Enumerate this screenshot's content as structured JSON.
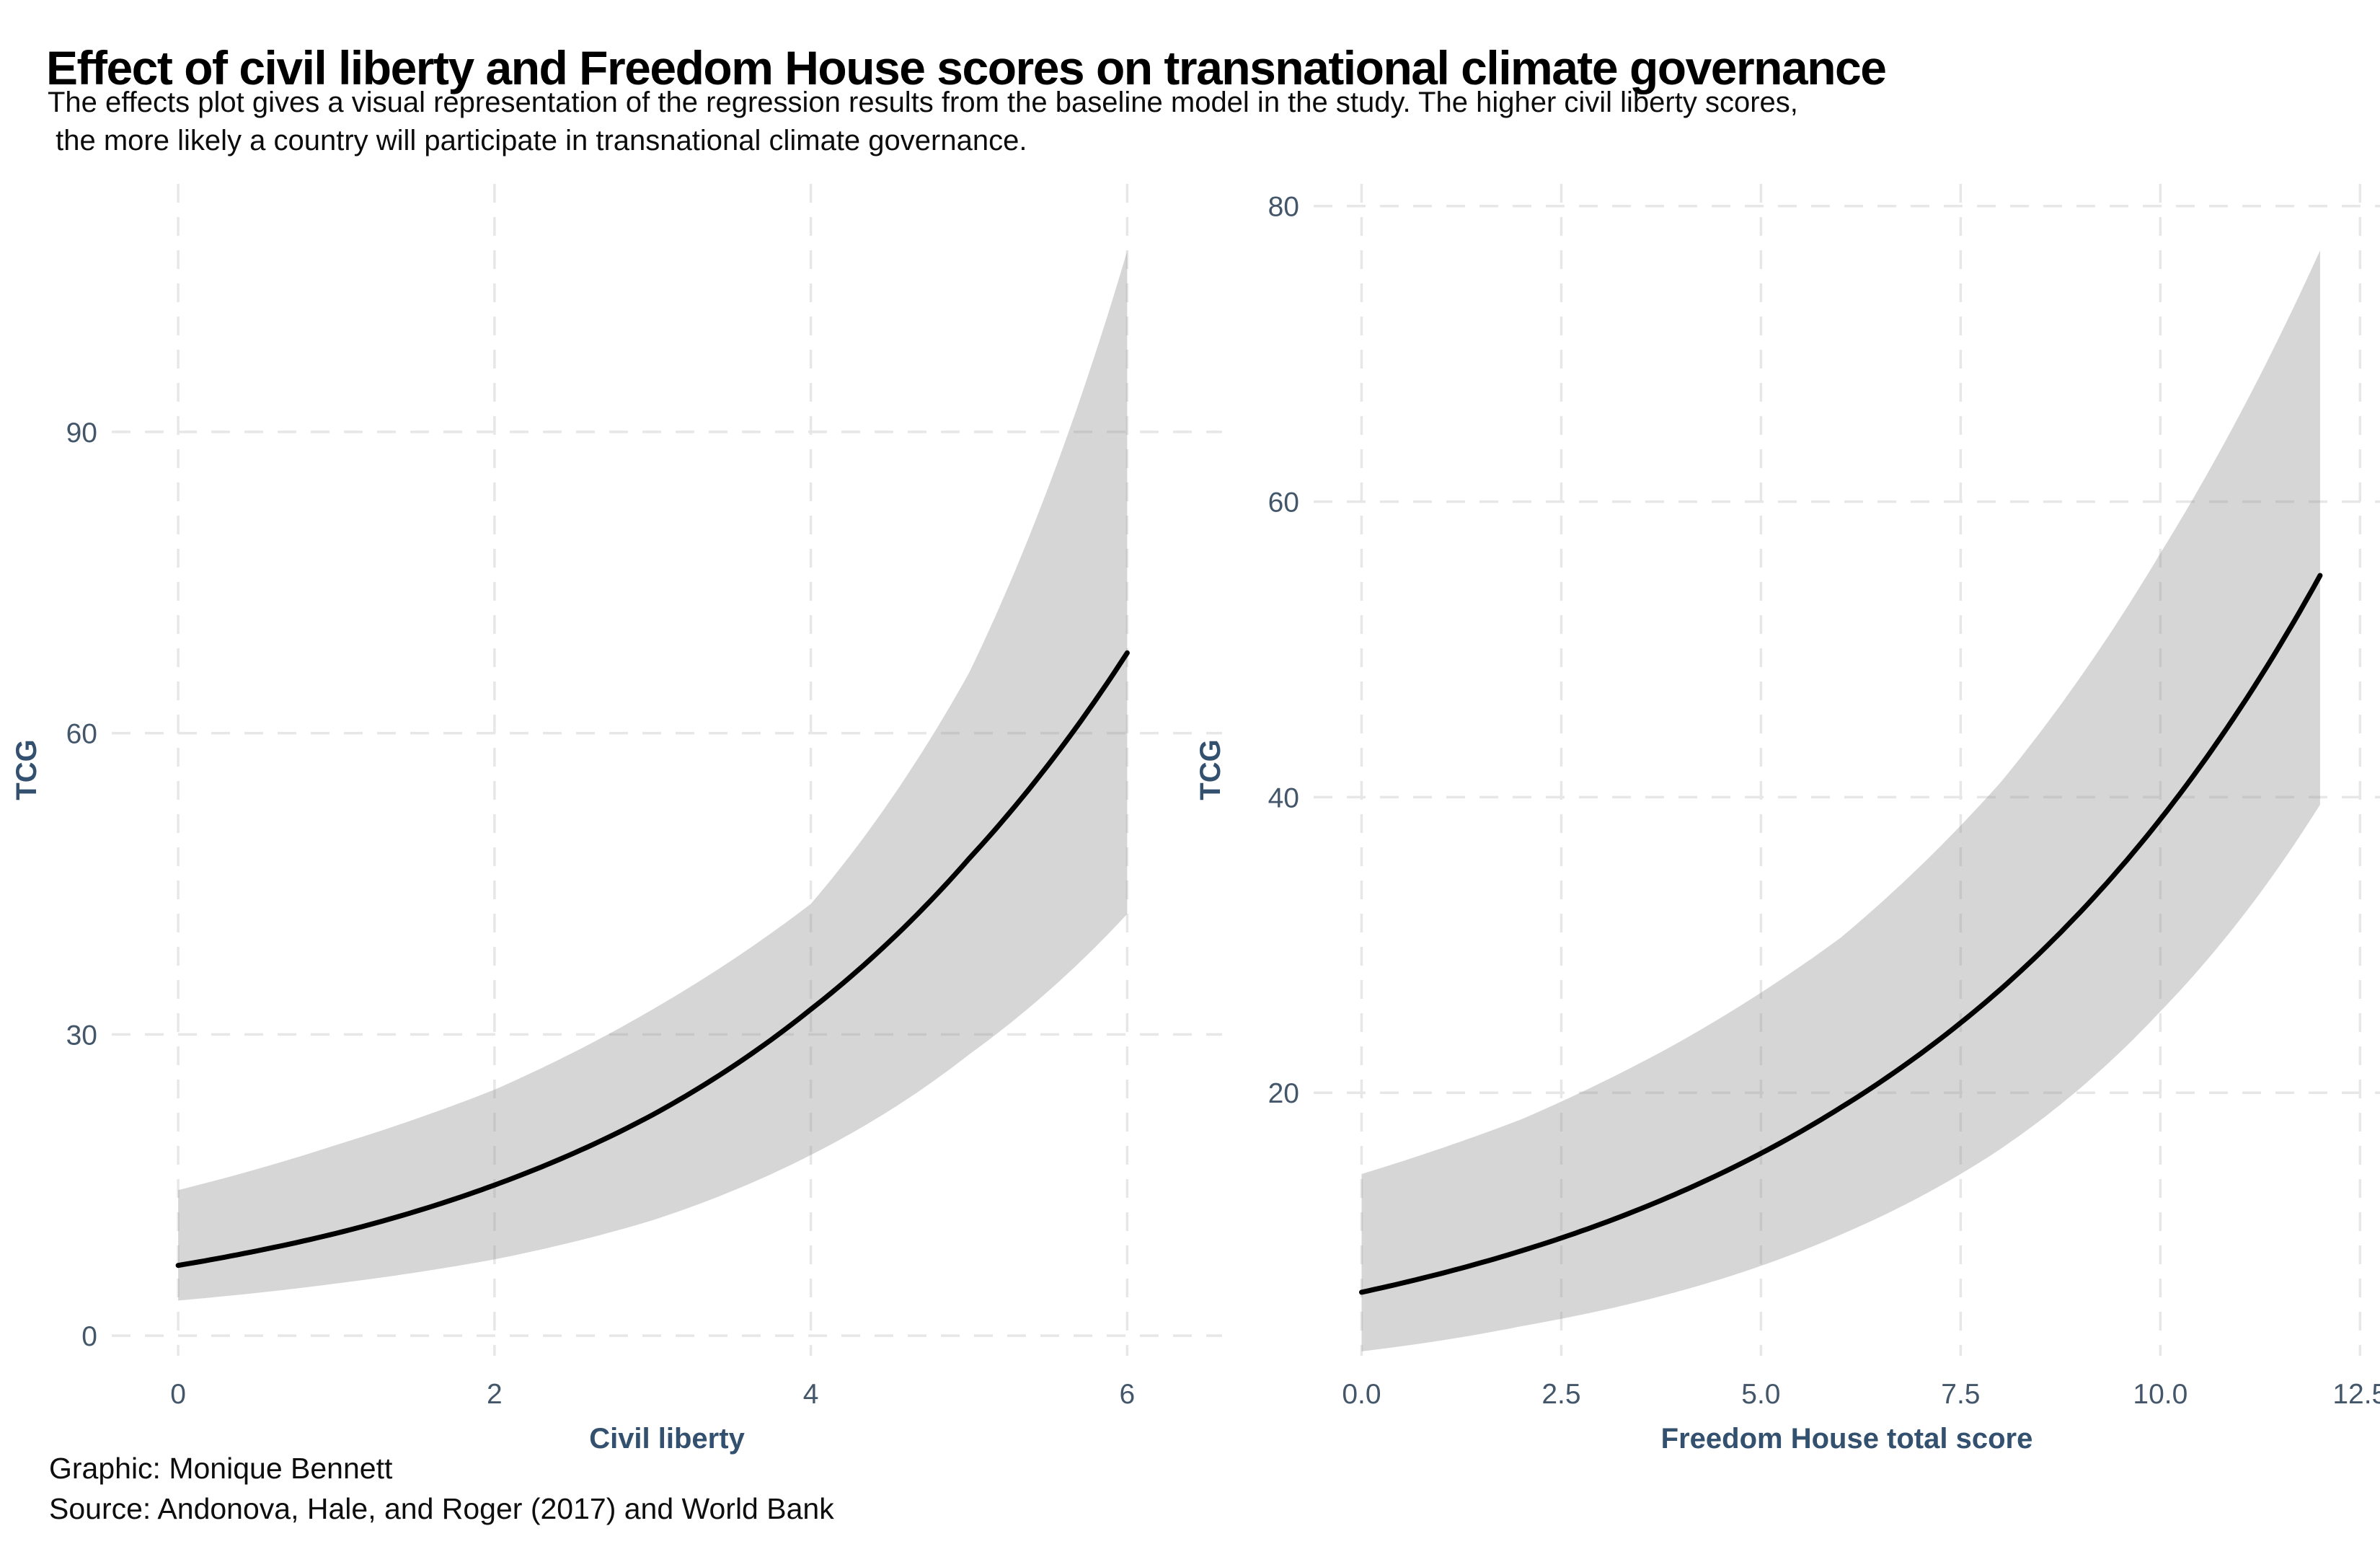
{
  "header": {
    "title": "Effect of civil liberty and Freedom House scores on transnational climate governance",
    "subtitle_line1": "The effects plot gives a visual representation of the regression results from the baseline model in the study. The higher civil liberty scores,",
    "subtitle_line2": " the more likely a country will participate in transnational climate governance."
  },
  "caption": {
    "line1": "Graphic: Monique Bennett",
    "line2": "Source: Andonova, Hale, and Roger (2017) and World Bank"
  },
  "colors": {
    "title_text": "#000000",
    "subtitle_text": "#0c0c0c",
    "caption_text": "#0e0e0e",
    "tick_label": "#43566a",
    "axis_title": "#33506f",
    "gridline": "#e7e7e7",
    "fit_line": "#000000",
    "confidence_band": "rgba(153,153,153,0.4)"
  },
  "chart_data": [
    {
      "id": "civil-liberty-effect",
      "type": "line",
      "title": "",
      "xlabel": "Civil liberty",
      "ylabel": "TCG",
      "grid": "dashed-major",
      "legend": "none",
      "x": [
        0,
        1,
        2,
        3,
        4,
        5,
        6
      ],
      "series": [
        {
          "role": "fit",
          "name": "Fitted TCG effect",
          "values": [
            7,
            10.2,
            15,
            22,
            32.5,
            47.5,
            68
          ]
        },
        {
          "role": "lower",
          "name": "Confidence band lower",
          "values": [
            3.5,
            5.2,
            7.6,
            11.5,
            18,
            28,
            42
          ]
        },
        {
          "role": "upper",
          "name": "Confidence band upper",
          "values": [
            14.5,
            19,
            24.5,
            32.5,
            43,
            66,
            108
          ]
        }
      ],
      "xticks": {
        "values": [
          0,
          2,
          4,
          6
        ],
        "labels": [
          "0",
          "2",
          "4",
          "6"
        ]
      },
      "yticks": {
        "values": [
          0,
          30,
          60,
          90
        ],
        "labels": [
          "0",
          "30",
          "60",
          "90"
        ]
      },
      "xlim": [
        -0.42,
        6.6
      ],
      "ylim": [
        -2,
        114.7
      ]
    },
    {
      "id": "freedom-house-effect",
      "type": "line",
      "title": "",
      "xlabel": "Freedom House total score",
      "ylabel": "TCG",
      "grid": "dashed-major",
      "legend": "none",
      "x": [
        0,
        2,
        4,
        6,
        8,
        10,
        12
      ],
      "series": [
        {
          "role": "fit",
          "name": "Fitted TCG effect",
          "values": [
            6.5,
            9.3,
            13.3,
            19,
            27,
            38.5,
            55
          ]
        },
        {
          "role": "lower",
          "name": "Confidence band lower",
          "values": [
            2.5,
            4.2,
            6.6,
            10.4,
            16.2,
            25.5,
            39.5
          ]
        },
        {
          "role": "upper",
          "name": "Confidence band upper",
          "values": [
            14.5,
            18.2,
            23.5,
            30.5,
            41,
            56.5,
            77
          ]
        }
      ],
      "xticks": {
        "values": [
          0,
          2.5,
          5,
          7.5,
          10,
          12.5
        ],
        "labels": [
          "0.0",
          "2.5",
          "5.0",
          "7.5",
          "10.0",
          "12.5"
        ]
      },
      "yticks": {
        "values": [
          20,
          40,
          60,
          80
        ],
        "labels": [
          "20",
          "40",
          "60",
          "80"
        ]
      },
      "xlim": [
        -0.6,
        12.75
      ],
      "ylim": [
        2.2,
        81.5
      ]
    }
  ]
}
